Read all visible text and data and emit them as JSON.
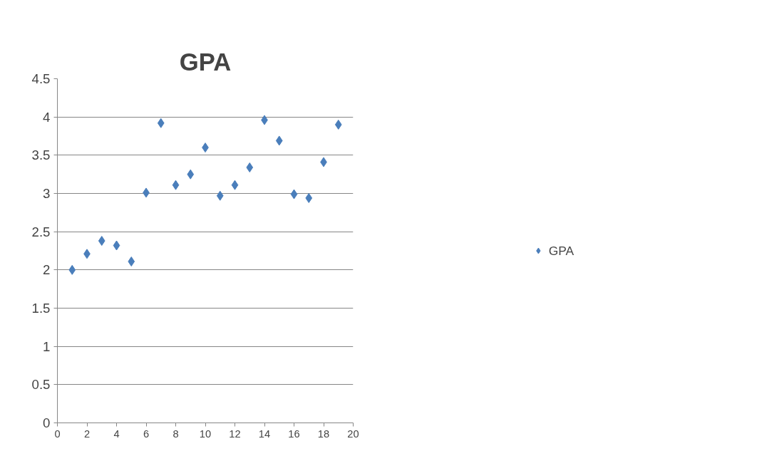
{
  "chart_data": {
    "type": "scatter",
    "title": "GPA",
    "x": [
      1,
      2,
      3,
      4,
      5,
      6,
      7,
      8,
      9,
      10,
      11,
      12,
      13,
      14,
      15,
      16,
      17,
      18,
      19
    ],
    "series": [
      {
        "name": "GPA",
        "color": "#4a7ebb",
        "values": [
          2.0,
          2.21,
          2.38,
          2.32,
          2.11,
          3.01,
          3.92,
          3.11,
          3.25,
          3.6,
          2.97,
          3.11,
          3.34,
          3.96,
          3.69,
          2.99,
          2.94,
          3.41,
          3.9
        ]
      }
    ],
    "xlim": [
      0,
      20
    ],
    "xticks": [
      0,
      2,
      4,
      6,
      8,
      10,
      12,
      14,
      16,
      18,
      20
    ],
    "ylim": [
      0,
      4.5
    ],
    "yticks": [
      0,
      0.5,
      1,
      1.5,
      2,
      2.5,
      3,
      3.5,
      4,
      4.5
    ],
    "grid": "y",
    "legend": "right",
    "marker": "diamond"
  }
}
